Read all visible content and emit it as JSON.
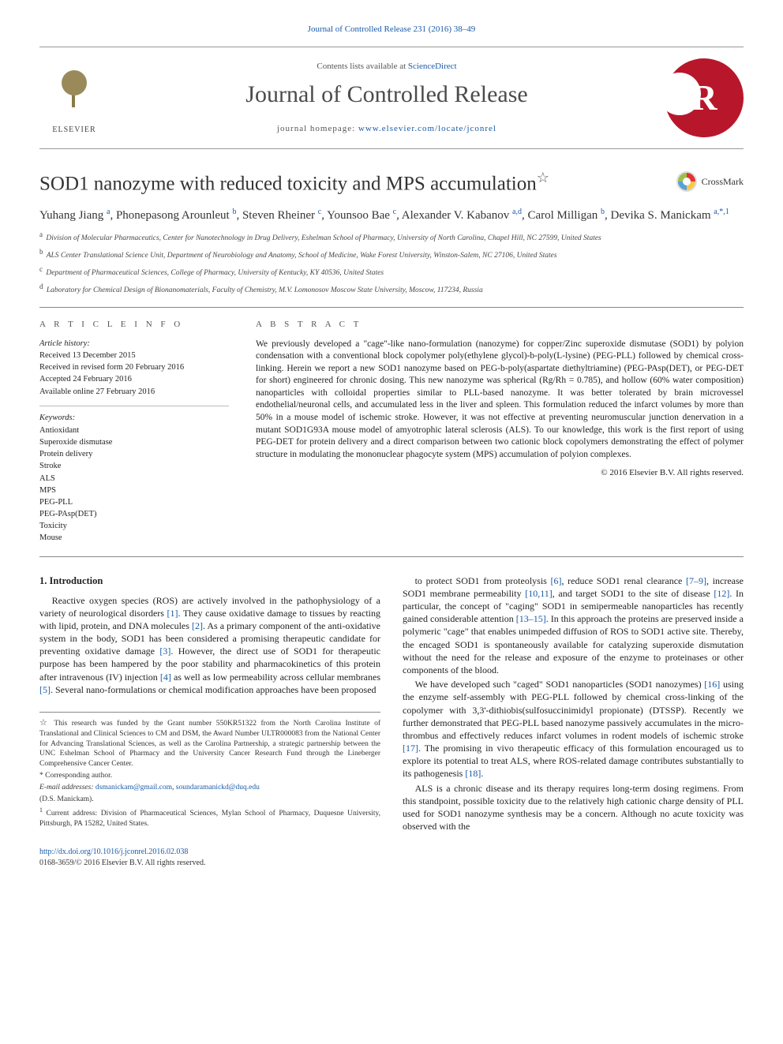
{
  "header": {
    "top_citation_link": "Journal of Controlled Release 231 (2016) 38–49",
    "contents_line_prefix": "Contents lists available at ",
    "contents_line_link": "ScienceDirect",
    "journal_name": "Journal of Controlled Release",
    "homepage_label": "journal homepage: ",
    "homepage_url": "www.elsevier.com/locate/jconrel",
    "publisher_name": "ELSEVIER"
  },
  "crossmark_label": "CrossMark",
  "title": "SOD1 nanozyme with reduced toxicity and MPS accumulation",
  "title_star": "☆",
  "authors_html": "Yuhang Jiang <sup>a</sup>, Phonepasong Arounleut <sup>b</sup>, Steven Rheiner <sup>c</sup>, Younsoo Bae <sup>c</sup>, Alexander V. Kabanov <sup>a,d</sup>, Carol Milligan <sup>b</sup>, Devika S. Manickam <sup>a,*,1</sup>",
  "affiliations": [
    {
      "sup": "a",
      "text": "Division of Molecular Pharmaceutics, Center for Nanotechnology in Drug Delivery, Eshelman School of Pharmacy, University of North Carolina, Chapel Hill, NC 27599, United States"
    },
    {
      "sup": "b",
      "text": "ALS Center Translational Science Unit, Department of Neurobiology and Anatomy, School of Medicine, Wake Forest University, Winston-Salem, NC 27106, United States"
    },
    {
      "sup": "c",
      "text": "Department of Pharmaceutical Sciences, College of Pharmacy, University of Kentucky, KY 40536, United States"
    },
    {
      "sup": "d",
      "text": "Laboratory for Chemical Design of Bionanomaterials, Faculty of Chemistry, M.V. Lomonosov Moscow State University, Moscow, 117234, Russia"
    }
  ],
  "article_info": {
    "head": "A R T I C L E  I N F O",
    "history_label": "Article history:",
    "history": [
      "Received 13 December 2015",
      "Received in revised form 20 February 2016",
      "Accepted 24 February 2016",
      "Available online 27 February 2016"
    ],
    "keywords_label": "Keywords:",
    "keywords": [
      "Antioxidant",
      "Superoxide dismutase",
      "Protein delivery",
      "Stroke",
      "ALS",
      "MPS",
      "PEG-PLL",
      "PEG-PAsp(DET)",
      "Toxicity",
      "Mouse"
    ]
  },
  "abstract": {
    "head": "A B S T R A C T",
    "text": "We previously developed a \"cage\"-like nano-formulation (nanozyme) for copper/Zinc superoxide dismutase (SOD1) by polyion condensation with a conventional block copolymer poly(ethylene glycol)-b-poly(L-lysine) (PEG-PLL) followed by chemical cross-linking. Herein we report a new SOD1 nanozyme based on PEG-b-poly(aspartate diethyltriamine) (PEG-PAsp(DET), or PEG-DET for short) engineered for chronic dosing. This new nanozyme was spherical (Rg/Rh = 0.785), and hollow (60% water composition) nanoparticles with colloidal properties similar to PLL-based nanozyme. It was better tolerated by brain microvessel endothelial/neuronal cells, and accumulated less in the liver and spleen. This formulation reduced the infarct volumes by more than 50% in a mouse model of ischemic stroke. However, it was not effective at preventing neuromuscular junction denervation in a mutant SOD1G93A mouse model of amyotrophic lateral sclerosis (ALS). To our knowledge, this work is the first report of using PEG-DET for protein delivery and a direct comparison between two cationic block copolymers demonstrating the effect of polymer structure in modulating the mononuclear phagocyte system (MPS) accumulation of polyion complexes.",
    "copyright": "© 2016 Elsevier B.V. All rights reserved."
  },
  "intro": {
    "head": "1. Introduction",
    "p1": "Reactive oxygen species (ROS) are actively involved in the pathophysiology of a variety of neurological disorders [1]. They cause oxidative damage to tissues by reacting with lipid, protein, and DNA molecules [2]. As a primary component of the anti-oxidative system in the body, SOD1 has been considered a promising therapeutic candidate for preventing oxidative damage [3]. However, the direct use of SOD1 for therapeutic purpose has been hampered by the poor stability and pharmacokinetics of this protein after intravenous (IV) injection [4] as well as low permeability across cellular membranes [5]. Several nano-formulations or chemical modification approaches have been proposed",
    "p2": "to protect SOD1 from proteolysis [6], reduce SOD1 renal clearance [7–9], increase SOD1 membrane permeability [10,11], and target SOD1 to the site of disease [12]. In particular, the concept of \"caging\" SOD1 in semipermeable nanoparticles has recently gained considerable attention [13–15]. In this approach the proteins are preserved inside a polymeric \"cage\" that enables unimpeded diffusion of ROS to SOD1 active site. Thereby, the encaged SOD1 is spontaneously available for catalyzing superoxide dismutation without the need for the release and exposure of the enzyme to proteinases or other components of the blood.",
    "p3": "We have developed such \"caged\" SOD1 nanoparticles (SOD1 nanozymes) [16] using the enzyme self-assembly with PEG-PLL followed by chemical cross-linking of the copolymer with 3,3'-dithiobis(sulfosuccinimidyl propionate) (DTSSP). Recently we further demonstrated that PEG-PLL based nanozyme passively accumulates in the micro-thrombus and effectively reduces infarct volumes in rodent models of ischemic stroke [17]. The promising in vivo therapeutic efficacy of this formulation encouraged us to explore its potential to treat ALS, where ROS-related damage contributes substantially to its pathogenesis [18].",
    "p4": "ALS is a chronic disease and its therapy requires long-term dosing regimens. From this standpoint, possible toxicity due to the relatively high cationic charge density of PLL used for SOD1 nanozyme synthesis may be a concern. Although no acute toxicity was observed with the"
  },
  "footnotes": {
    "funding_star": "☆",
    "funding": "This research was funded by the Grant number 550KR51322 from the North Carolina Institute of Translational and Clinical Sciences to CM and DSM, the Award Number ULTR000083 from the National Center for Advancing Translational Sciences, as well as the Carolina Partnership, a strategic partnership between the UNC Eshelman School of Pharmacy and the University Cancer Research Fund through the Lineberger Comprehensive Cancer Center.",
    "corr_star": "*",
    "corr": "Corresponding author.",
    "email_label": "E-mail addresses: ",
    "email1": "dsmanickam@gmail.com",
    "email2": "soundaramanickd@duq.edu",
    "email_person": "(D.S. Manickam).",
    "note1_sup": "1",
    "note1": "Current address: Division of Pharmaceutical Sciences, Mylan School of Pharmacy, Duquesne University, Pittsburgh, PA 15282, United States."
  },
  "doi": {
    "url": "http://dx.doi.org/10.1016/j.jconrel.2016.02.038",
    "issn_line": "0168-3659/© 2016 Elsevier B.V. All rights reserved."
  },
  "colors": {
    "link": "#1a5aa8",
    "elsevier_orange": "#e9711c",
    "crossmark_red": "#e33434",
    "journal_logo_bg": "#b8172b",
    "rule": "#888888"
  }
}
